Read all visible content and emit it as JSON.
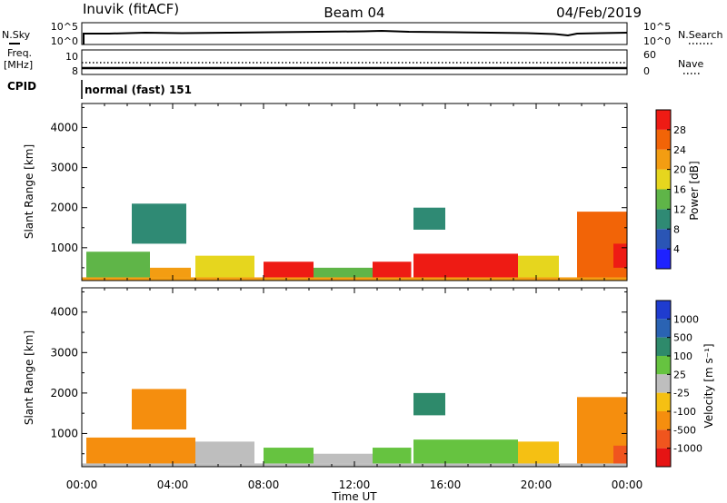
{
  "header": {
    "station": "Inuvik (fitACF)",
    "beam": "Beam 04",
    "date": "04/Feb/2019"
  },
  "strips": {
    "nsky_label": "N.Sky",
    "nsky_ticks": [
      "10^5",
      "10^0"
    ],
    "nsearch_label": "N.Search",
    "nsearch_ticks": [
      "10^5",
      "10^0"
    ],
    "freq_label_1": "Freq.",
    "freq_label_2": "[MHz]",
    "freq_ticks": [
      "10",
      "8"
    ],
    "nave_label": "Nave",
    "nave_ticks": [
      "60",
      "0"
    ],
    "cpid_label": "CPID",
    "cpid_text": "normal (fast) 151"
  },
  "chart_data": [
    {
      "type": "heatmap",
      "name": "power-panel",
      "ylabel": "Slant Range [km]",
      "ylim": [
        180,
        4600
      ],
      "yticks": [
        "1000",
        "2000",
        "3000",
        "4000"
      ],
      "xlim": [
        0,
        24
      ],
      "colorbar": {
        "label": "Power [dB]",
        "tick_labels": [
          "4",
          "8",
          "12",
          "16",
          "20",
          "24",
          "28"
        ],
        "bins": [
          {
            "min": 0,
            "max": 4,
            "color": "#1e22ff"
          },
          {
            "min": 4,
            "max": 8,
            "color": "#2a55b5"
          },
          {
            "min": 8,
            "max": 12,
            "color": "#2f8a74"
          },
          {
            "min": 12,
            "max": 16,
            "color": "#5fb548"
          },
          {
            "min": 16,
            "max": 20,
            "color": "#e6d61e"
          },
          {
            "min": 20,
            "max": 24,
            "color": "#f39d12"
          },
          {
            "min": 24,
            "max": 28,
            "color": "#f26407"
          },
          {
            "min": 28,
            "max": 32,
            "color": "#ee1b14"
          }
        ]
      },
      "regions": [
        {
          "t0": 0.0,
          "t1": 24.0,
          "r0": 180,
          "r1": 260,
          "value": 22
        },
        {
          "t0": 0.2,
          "t1": 3.0,
          "r0": 260,
          "r1": 900,
          "value": 12
        },
        {
          "t0": 2.2,
          "t1": 4.6,
          "r0": 1100,
          "r1": 2100,
          "value": 10
        },
        {
          "t0": 3.0,
          "t1": 4.8,
          "r0": 260,
          "r1": 500,
          "value": 22
        },
        {
          "t0": 5.0,
          "t1": 7.6,
          "r0": 260,
          "r1": 800,
          "value": 18
        },
        {
          "t0": 8.0,
          "t1": 10.2,
          "r0": 260,
          "r1": 650,
          "value": 28
        },
        {
          "t0": 10.2,
          "t1": 12.8,
          "r0": 260,
          "r1": 500,
          "value": 14
        },
        {
          "t0": 12.8,
          "t1": 14.5,
          "r0": 260,
          "r1": 650,
          "value": 30
        },
        {
          "t0": 14.6,
          "t1": 16.0,
          "r0": 1450,
          "r1": 2000,
          "value": 10
        },
        {
          "t0": 14.6,
          "t1": 19.2,
          "r0": 260,
          "r1": 850,
          "value": 28
        },
        {
          "t0": 19.2,
          "t1": 21.0,
          "r0": 260,
          "r1": 800,
          "value": 18
        },
        {
          "t0": 21.8,
          "t1": 24.0,
          "r0": 260,
          "r1": 1900,
          "value": 24
        },
        {
          "t0": 23.4,
          "t1": 24.0,
          "r0": 500,
          "r1": 1100,
          "value": 30
        }
      ]
    },
    {
      "type": "heatmap",
      "name": "velocity-panel",
      "ylabel": "Slant Range [km]",
      "xlabel": "Time UT",
      "ylim": [
        180,
        4600
      ],
      "yticks": [
        "1000",
        "2000",
        "3000",
        "4000"
      ],
      "xlim": [
        0,
        24
      ],
      "xticks": [
        "00:00",
        "04:00",
        "08:00",
        "12:00",
        "16:00",
        "20:00",
        "00:00"
      ],
      "colorbar": {
        "label": "Velocity [m s⁻¹]",
        "tick_labels": [
          "1000",
          "500",
          "100",
          "25",
          "-25",
          "-100",
          "-500",
          "-1000"
        ],
        "bins": [
          {
            "min": 1000,
            "max": 1500,
            "color": "#1f3ccf"
          },
          {
            "min": 500,
            "max": 1000,
            "color": "#2a63b3"
          },
          {
            "min": 100,
            "max": 500,
            "color": "#2e8a6b"
          },
          {
            "min": 25,
            "max": 100,
            "color": "#66c340"
          },
          {
            "min": -25,
            "max": 25,
            "color": "#bebebe"
          },
          {
            "min": -100,
            "max": -25,
            "color": "#f5c013"
          },
          {
            "min": -500,
            "max": -100,
            "color": "#f58e0e"
          },
          {
            "min": -1000,
            "max": -500,
            "color": "#f0551e"
          },
          {
            "min": -1500,
            "max": -1000,
            "color": "#e61414"
          }
        ]
      },
      "regions": [
        {
          "t0": 0.0,
          "t1": 24.0,
          "r0": 180,
          "r1": 260,
          "value": 0
        },
        {
          "t0": 0.2,
          "t1": 5.0,
          "r0": 260,
          "r1": 900,
          "value": -150
        },
        {
          "t0": 2.2,
          "t1": 4.6,
          "r0": 1100,
          "r1": 2100,
          "value": -300
        },
        {
          "t0": 5.0,
          "t1": 7.6,
          "r0": 260,
          "r1": 800,
          "value": 0
        },
        {
          "t0": 8.0,
          "t1": 10.2,
          "r0": 260,
          "r1": 650,
          "value": 60
        },
        {
          "t0": 10.2,
          "t1": 12.8,
          "r0": 260,
          "r1": 500,
          "value": 0
        },
        {
          "t0": 12.8,
          "t1": 14.5,
          "r0": 260,
          "r1": 650,
          "value": 60
        },
        {
          "t0": 14.6,
          "t1": 16.0,
          "r0": 1450,
          "r1": 2000,
          "value": 300
        },
        {
          "t0": 14.6,
          "t1": 19.2,
          "r0": 260,
          "r1": 850,
          "value": 60
        },
        {
          "t0": 19.2,
          "t1": 21.0,
          "r0": 260,
          "r1": 800,
          "value": -60
        },
        {
          "t0": 21.8,
          "t1": 24.0,
          "r0": 260,
          "r1": 1900,
          "value": -300
        },
        {
          "t0": 23.4,
          "t1": 24.0,
          "r0": 260,
          "r1": 700,
          "value": -700
        }
      ]
    }
  ]
}
